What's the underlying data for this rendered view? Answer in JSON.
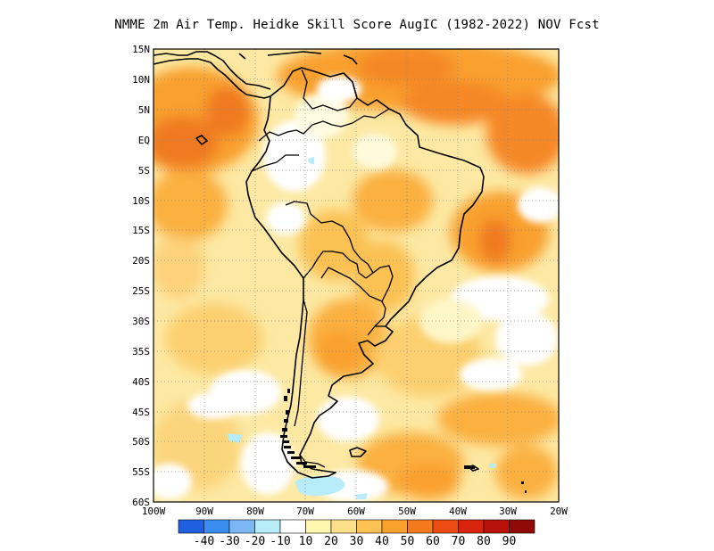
{
  "title": "NMME  2m Air Temp. Heidke Skill Score AugIC (1982-2022) NOV Fcst",
  "lat_labels": [
    "15N",
    "10N",
    "5N",
    "EQ",
    "5S",
    "10S",
    "15S",
    "20S",
    "25S",
    "30S",
    "35S",
    "40S",
    "45S",
    "50S",
    "55S",
    "60S"
  ],
  "lon_labels": [
    "100W",
    "90W",
    "80W",
    "70W",
    "60W",
    "50W",
    "40W",
    "30W",
    "20W"
  ],
  "colorbar": {
    "labels": [
      "-40",
      "-30",
      "-20",
      "-10",
      "10",
      "20",
      "30",
      "40",
      "50",
      "60",
      "70",
      "80",
      "90"
    ],
    "colors": [
      "#1f5fe0",
      "#3a8ef0",
      "#7db8f5",
      "#b8ecf8",
      "#ffffff",
      "#fff6b0",
      "#fde08a",
      "#fbc153",
      "#f9a02d",
      "#f57a1e",
      "#ec4c14",
      "#d8240c",
      "#b9120a",
      "#8e0b08"
    ]
  },
  "map": {
    "extent": {
      "lon_min": -100,
      "lon_max": -20,
      "lat_min": -60,
      "lat_max": 15
    },
    "grid": true
  }
}
